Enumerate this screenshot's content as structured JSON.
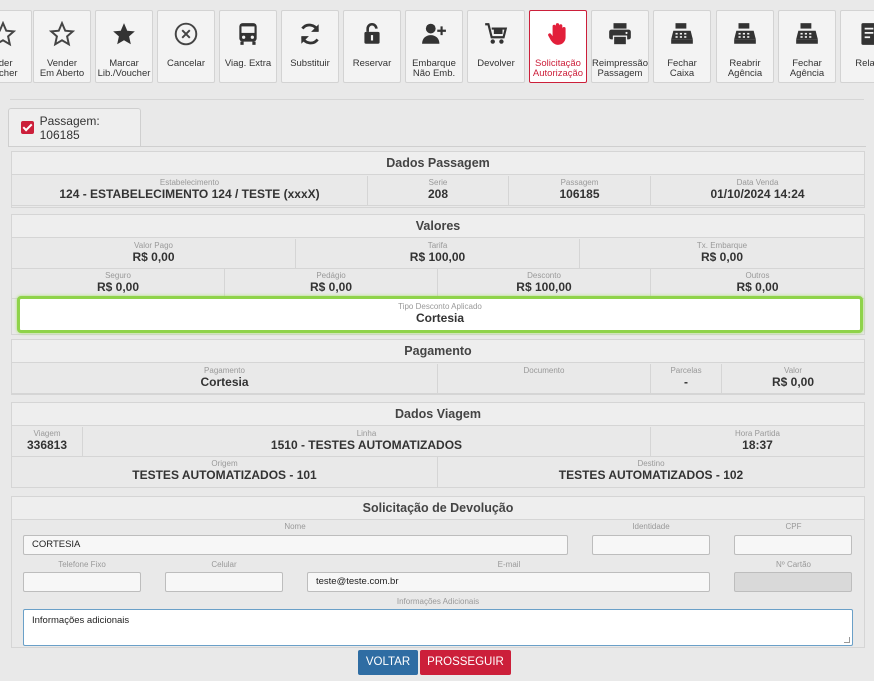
{
  "toolbar": [
    {
      "label": "nder\noucher",
      "icon": "star-outline-icon"
    },
    {
      "label": "Vender\nEm Aberto",
      "icon": "star-outline-icon"
    },
    {
      "label": "Marcar\nLib./Voucher",
      "icon": "star-filled-icon"
    },
    {
      "label": "Cancelar",
      "icon": "cancel-circle-icon"
    },
    {
      "label": "Viag. Extra",
      "icon": "bus-icon"
    },
    {
      "label": "Substituir",
      "icon": "refresh-icon"
    },
    {
      "label": "Reservar",
      "icon": "unlock-icon"
    },
    {
      "label": "Embarque\nNão Emb.",
      "icon": "user-plus-icon"
    },
    {
      "label": "Devolver",
      "icon": "cart-return-icon"
    },
    {
      "label": "Solicitação\nAutorização",
      "icon": "hand-stop-icon",
      "active": true
    },
    {
      "label": "Reimpressão\nPassagem",
      "icon": "printer-icon"
    },
    {
      "label": "Fechar\nCaixa",
      "icon": "cash-register-icon"
    },
    {
      "label": "Reabrir\nAgência",
      "icon": "cash-register-icon"
    },
    {
      "label": "Fechar\nAgência",
      "icon": "cash-register-icon"
    },
    {
      "label": "Relató",
      "icon": "report-icon"
    }
  ],
  "tab": {
    "label": "Passagem: 106185"
  },
  "dados_passagem": {
    "title": "Dados Passagem",
    "estabelecimento_label": "Estabelecimento",
    "estabelecimento": "124 - ESTABELECIMENTO 124 / TESTE (xxxX)",
    "serie_label": "Serie",
    "serie": "208",
    "passagem_label": "Passagem",
    "passagem": "106185",
    "data_venda_label": "Data Venda",
    "data_venda": "01/10/2024 14:24"
  },
  "valores": {
    "title": "Valores",
    "valor_pago_label": "Valor Pago",
    "valor_pago": "R$ 0,00",
    "tarifa_label": "Tarifa",
    "tarifa": "R$ 100,00",
    "tx_embarque_label": "Tx. Embarque",
    "tx_embarque": "R$ 0,00",
    "seguro_label": "Seguro",
    "seguro": "R$ 0,00",
    "pedagio_label": "Pedágio",
    "pedagio": "R$ 0,00",
    "desconto_label": "Desconto",
    "desconto": "R$ 100,00",
    "outros_label": "Outros",
    "outros": "R$ 0,00",
    "tipo_desconto_label": "Tipo Desconto Aplicado",
    "tipo_desconto": "Cortesia"
  },
  "pagamento": {
    "title": "Pagamento",
    "pagamento_label": "Pagamento",
    "pagamento": "Cortesia",
    "documento_label": "Documento",
    "documento": "",
    "parcelas_label": "Parcelas",
    "parcelas": "-",
    "valor_label": "Valor",
    "valor": "R$ 0,00"
  },
  "dados_viagem": {
    "title": "Dados Viagem",
    "viagem_label": "Viagem",
    "viagem": "336813",
    "linha_label": "Linha",
    "linha": "1510 - TESTES AUTOMATIZADOS",
    "hora_partida_label": "Hora Partida",
    "hora_partida": "18:37",
    "origem_label": "Origem",
    "origem": "TESTES AUTOMATIZADOS - 101",
    "destino_label": "Destino",
    "destino": "TESTES AUTOMATIZADOS - 102"
  },
  "devolucao": {
    "title": "Solicitação de Devolução",
    "nome_label": "Nome",
    "nome": "CORTESIA",
    "identidade_label": "Identidade",
    "cpf_label": "CPF",
    "telefone_label": "Telefone Fixo",
    "celular_label": "Celular",
    "email_label": "E-mail",
    "email": "teste@teste.com.br",
    "cartao_label": "Nº Cartão",
    "info_label": "Informações Adicionais",
    "info_placeholder": "Informações adicionais"
  },
  "buttons": {
    "voltar": "VOLTAR",
    "prosseguir": "PROSSEGUIR"
  },
  "colors": {
    "accent": "#cc1f3a",
    "primary": "#2f6da3",
    "highlight": "#8fd34a"
  }
}
